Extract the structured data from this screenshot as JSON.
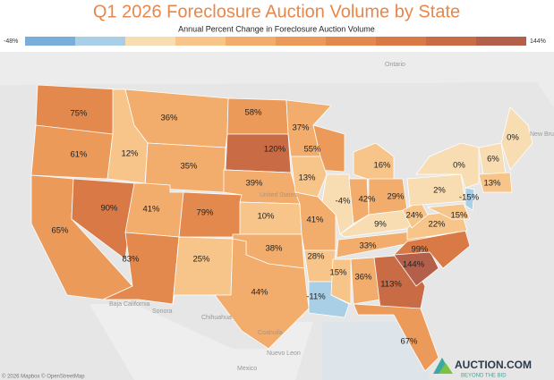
{
  "title": "Q1 2026 Foreclosure Auction Volume by State",
  "legend": {
    "title": "Annual Percent Change in Foreclosure Auction Volume",
    "min": {
      "value": -48,
      "label": "-48%"
    },
    "max": {
      "value": 144,
      "label": "144%"
    },
    "colors": [
      "#79aedb",
      "#a8cfe5",
      "#f8dcb2",
      "#f7c48a",
      "#f2ac6c",
      "#ec9a5a",
      "#e3894e",
      "#d97a46",
      "#c96b44",
      "#b45f4a"
    ]
  },
  "states": {
    "values": [
      75,
      61,
      65,
      90,
      12,
      36,
      35,
      41,
      83,
      79,
      25,
      58,
      120,
      39,
      10,
      38,
      44,
      37,
      55,
      13,
      41,
      28,
      -11,
      15,
      36,
      -4,
      42,
      16,
      29,
      9,
      33,
      113,
      67,
      144,
      99,
      22,
      24,
      2,
      0,
      15,
      -15,
      6,
      0,
      13
    ],
    "value_labels": [
      "75%",
      "61%",
      "65%",
      "90%",
      "12%",
      "36%",
      "35%",
      "41%",
      "83%",
      "79%",
      "25%",
      "58%",
      "120%",
      "39%",
      "10%",
      "38%",
      "44%",
      "37%",
      "55%",
      "13%",
      "41%",
      "28%",
      "-11%",
      "15%",
      "36%",
      "-4%",
      "42%",
      "16%",
      "29%",
      "9%",
      "33%",
      "113%",
      "67%",
      "144%",
      "99%",
      "22%",
      "24%",
      "2%",
      "0%",
      "15%",
      "-15%",
      "6%",
      "0%",
      "13%"
    ]
  },
  "basemap": {
    "labels": [
      "Ontario",
      "United States",
      "Baja California",
      "Sonora",
      "Chihuahua",
      "Coahuila",
      "Nuevo Leon",
      "Mexico",
      "New Brunswick"
    ],
    "attribution": "© 2026 Mapbox © OpenStreetMap"
  },
  "brand": {
    "name": "AUCTION.COM",
    "tagline": "BEYOND THE BID"
  }
}
